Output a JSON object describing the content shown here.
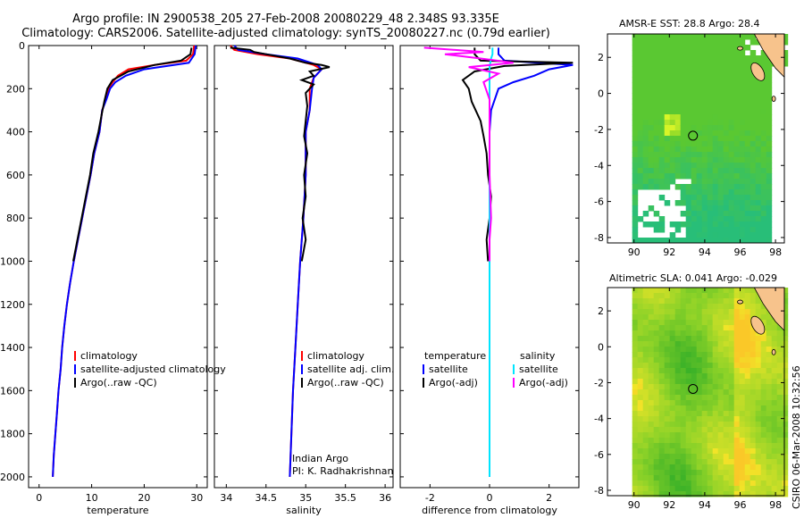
{
  "header": {
    "line1": "Argo profile: IN 2900538_205 27-Feb-2008 20080229_48 2.348S 93.335E",
    "line2": "Climatology: CARS2006. Satellite-adjusted climatology: synTS_20080227.nc (0.79d earlier)"
  },
  "colors": {
    "clim": "#ff0000",
    "sat": "#0000ff",
    "argo": "#000000",
    "cyan": "#00e5ff",
    "magenta": "#ff00ff",
    "land": "#f7c38c"
  },
  "chart_data": [
    {
      "type": "line",
      "id": "temperature",
      "xlabel": "temperature",
      "xlim": [
        -2,
        32
      ],
      "ylim": [
        0,
        2050
      ],
      "xticks": [
        0,
        10,
        20,
        30
      ],
      "yticks": [
        0,
        200,
        400,
        600,
        800,
        1000,
        1200,
        1400,
        1600,
        1800,
        2000
      ],
      "legend": [
        "climatology",
        "satellite-adjusted climatology",
        "Argo(..raw -QC)"
      ],
      "series": [
        {
          "name": "climatology",
          "color": "clim",
          "points": [
            [
              29.5,
              0
            ],
            [
              29.3,
              40
            ],
            [
              28,
              70
            ],
            [
              22,
              90
            ],
            [
              17,
              110
            ],
            [
              15,
              140
            ],
            [
              14,
              170
            ],
            [
              13.2,
              200
            ],
            [
              12.8,
              240
            ],
            [
              12,
              300
            ],
            [
              11.5,
              400
            ],
            [
              10.5,
              500
            ],
            [
              9.8,
              600
            ],
            [
              9,
              700
            ],
            [
              8.2,
              800
            ],
            [
              7.4,
              900
            ],
            [
              6.6,
              1000
            ],
            [
              5.9,
              1100
            ],
            [
              5.3,
              1200
            ],
            [
              4.8,
              1300
            ],
            [
              4.4,
              1400
            ],
            [
              4.1,
              1500
            ],
            [
              3.7,
              1600
            ],
            [
              3.4,
              1700
            ],
            [
              3.1,
              1800
            ],
            [
              2.8,
              1900
            ],
            [
              2.6,
              2000
            ]
          ]
        },
        {
          "name": "satellite-adjusted climatology",
          "color": "sat",
          "points": [
            [
              29.8,
              0
            ],
            [
              29.6,
              40
            ],
            [
              28.5,
              80
            ],
            [
              20,
              110
            ],
            [
              16.5,
              140
            ],
            [
              14.5,
              170
            ],
            [
              13.5,
              200
            ],
            [
              12.8,
              250
            ],
            [
              12,
              300
            ],
            [
              11.5,
              400
            ],
            [
              10.5,
              500
            ],
            [
              9.8,
              600
            ],
            [
              9,
              700
            ],
            [
              8.2,
              800
            ],
            [
              7.4,
              900
            ],
            [
              6.6,
              1000
            ],
            [
              5.9,
              1100
            ],
            [
              5.3,
              1200
            ],
            [
              4.8,
              1300
            ],
            [
              4.4,
              1400
            ],
            [
              4.1,
              1500
            ],
            [
              3.7,
              1600
            ],
            [
              3.4,
              1700
            ],
            [
              3.1,
              1800
            ],
            [
              2.8,
              1900
            ],
            [
              2.6,
              2000
            ]
          ]
        },
        {
          "name": "Argo(..raw -QC)",
          "color": "argo",
          "points": [
            [
              29.0,
              10
            ],
            [
              28.8,
              40
            ],
            [
              27,
              70
            ],
            [
              22,
              90
            ],
            [
              17,
              120
            ],
            [
              14,
              160
            ],
            [
              13,
              200
            ],
            [
              12.4,
              260
            ],
            [
              11.9,
              320
            ],
            [
              11.3,
              400
            ],
            [
              10.3,
              500
            ],
            [
              9.7,
              600
            ],
            [
              8.9,
              700
            ],
            [
              8.1,
              800
            ],
            [
              7.3,
              900
            ],
            [
              6.5,
              1000
            ]
          ]
        }
      ]
    },
    {
      "type": "line",
      "id": "salinity",
      "xlabel": "salinity",
      "xlim": [
        33.85,
        36.1
      ],
      "ylim": [
        0,
        2050
      ],
      "xticks": [
        34,
        34.5,
        35,
        35.5,
        36
      ],
      "legend": [
        "climatology",
        "satellite adj. clim.",
        "Argo(..raw -QC)"
      ],
      "annotation": [
        "Indian Argo",
        "PI: K. Radhakrishnan"
      ],
      "series": [
        {
          "name": "climatology",
          "color": "clim",
          "points": [
            [
              34.05,
              0
            ],
            [
              34.1,
              20
            ],
            [
              34.4,
              40
            ],
            [
              34.8,
              60
            ],
            [
              35.1,
              90
            ],
            [
              35.2,
              110
            ],
            [
              35.1,
              150
            ],
            [
              35.05,
              200
            ],
            [
              35.05,
              300
            ],
            [
              35.0,
              400
            ],
            [
              35.0,
              600
            ],
            [
              34.97,
              800
            ],
            [
              34.93,
              1000
            ],
            [
              34.9,
              1200
            ],
            [
              34.87,
              1400
            ],
            [
              34.84,
              1600
            ],
            [
              34.82,
              1800
            ],
            [
              34.8,
              2000
            ]
          ]
        },
        {
          "name": "satellite adj. clim.",
          "color": "sat",
          "points": [
            [
              34.1,
              0
            ],
            [
              34.15,
              20
            ],
            [
              34.5,
              40
            ],
            [
              34.9,
              60
            ],
            [
              35.15,
              90
            ],
            [
              35.2,
              110
            ],
            [
              35.1,
              150
            ],
            [
              35.08,
              200
            ],
            [
              35.05,
              300
            ],
            [
              35.0,
              400
            ],
            [
              35.0,
              600
            ],
            [
              34.97,
              800
            ],
            [
              34.93,
              1000
            ],
            [
              34.9,
              1200
            ],
            [
              34.87,
              1400
            ],
            [
              34.84,
              1600
            ],
            [
              34.82,
              1800
            ],
            [
              34.8,
              2000
            ]
          ]
        },
        {
          "name": "Argo(..raw -QC)",
          "color": "argo",
          "points": [
            [
              34.05,
              10
            ],
            [
              34.3,
              20
            ],
            [
              34.35,
              30
            ],
            [
              34.5,
              40
            ],
            [
              34.8,
              60
            ],
            [
              35.0,
              80
            ],
            [
              35.2,
              90
            ],
            [
              35.3,
              100
            ],
            [
              35.05,
              120
            ],
            [
              35.1,
              140
            ],
            [
              34.95,
              160
            ],
            [
              35.1,
              180
            ],
            [
              35.0,
              220
            ],
            [
              35.02,
              280
            ],
            [
              35.0,
              350
            ],
            [
              34.98,
              420
            ],
            [
              35.02,
              500
            ],
            [
              34.98,
              600
            ],
            [
              35.0,
              700
            ],
            [
              34.96,
              800
            ],
            [
              35.0,
              900
            ],
            [
              34.95,
              1000
            ]
          ]
        }
      ]
    },
    {
      "type": "line",
      "id": "difference",
      "xlabel": "difference from climatology",
      "xlim": [
        -3.0,
        3.0
      ],
      "ylim": [
        0,
        2050
      ],
      "xticks": [
        -2,
        0,
        2
      ],
      "legend_temperature": [
        "temperature",
        "satellite",
        "Argo(-adj)"
      ],
      "legend_salinity": [
        "salinity",
        "satellite",
        "Argo(-adj)"
      ],
      "series": [
        {
          "name": "temperature satellite",
          "color": "sat",
          "points": [
            [
              0.3,
              10
            ],
            [
              0.3,
              40
            ],
            [
              0.5,
              70
            ],
            [
              2.8,
              90
            ],
            [
              2.0,
              110
            ],
            [
              1.5,
              140
            ],
            [
              0.8,
              170
            ],
            [
              0.3,
              200
            ],
            [
              0.05,
              300
            ],
            [
              0,
              400
            ],
            [
              0,
              600
            ],
            [
              0,
              800
            ],
            [
              0,
              1000
            ],
            [
              0,
              1400
            ],
            [
              0,
              1800
            ],
            [
              0,
              2000
            ]
          ]
        },
        {
          "name": "temperature Argo(-adj)",
          "color": "argo",
          "points": [
            [
              -0.5,
              10
            ],
            [
              -0.5,
              40
            ],
            [
              -0.3,
              70
            ],
            [
              2.8,
              80
            ],
            [
              0.5,
              95
            ],
            [
              -0.5,
              120
            ],
            [
              -0.9,
              160
            ],
            [
              -0.7,
              200
            ],
            [
              -0.6,
              260
            ],
            [
              -0.3,
              350
            ],
            [
              -0.2,
              420
            ],
            [
              -0.1,
              500
            ],
            [
              -0.05,
              600
            ],
            [
              0.05,
              700
            ],
            [
              0,
              800
            ],
            [
              -0.1,
              900
            ],
            [
              -0.05,
              1000
            ]
          ]
        },
        {
          "name": "salinity satellite",
          "color": "cyan",
          "points": [
            [
              0.1,
              10
            ],
            [
              0.1,
              40
            ],
            [
              0.05,
              60
            ],
            [
              0,
              100
            ],
            [
              0,
              300
            ],
            [
              0,
              600
            ],
            [
              0,
              1000
            ],
            [
              0,
              1500
            ],
            [
              0,
              2000
            ]
          ]
        },
        {
          "name": "salinity Argo(-adj)",
          "color": "magenta",
          "points": [
            [
              -2.2,
              10
            ],
            [
              -0.2,
              30
            ],
            [
              -1.5,
              40
            ],
            [
              -0.3,
              60
            ],
            [
              0.8,
              80
            ],
            [
              -0.7,
              100
            ],
            [
              0.3,
              130
            ],
            [
              -0.2,
              170
            ],
            [
              0,
              250
            ],
            [
              0,
              400
            ],
            [
              0,
              600
            ],
            [
              0.05,
              800
            ],
            [
              0,
              900
            ],
            [
              0,
              1000
            ]
          ]
        }
      ]
    },
    {
      "type": "heatmap",
      "id": "sst-map",
      "title": "AMSR-E SST: 28.8 Argo: 28.4",
      "xlim": [
        88.5,
        98.5
      ],
      "ylim": [
        -8.3,
        3.3
      ],
      "xticks": [
        90,
        92,
        94,
        96,
        98
      ],
      "yticks": [
        2,
        0,
        -2,
        -4,
        -6,
        -8
      ],
      "argo_position": [
        93.335,
        -2.348
      ]
    },
    {
      "type": "heatmap",
      "id": "sla-map",
      "title": "Altimetric SLA: 0.041 Argo: -0.029",
      "xlim": [
        88.5,
        98.5
      ],
      "ylim": [
        -8.3,
        3.3
      ],
      "xticks": [
        90,
        92,
        94,
        96,
        98
      ],
      "yticks": [
        2,
        0,
        -2,
        -4,
        -6,
        -8
      ],
      "argo_position": [
        93.335,
        -2.348
      ]
    }
  ],
  "footer": {
    "stamp": "CSIRO 06-Mar-2008 10:32:56"
  }
}
